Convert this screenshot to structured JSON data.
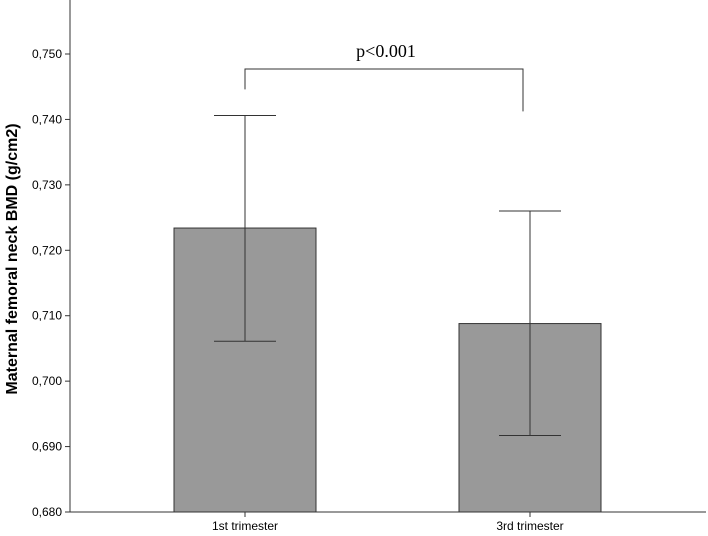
{
  "chart_data": {
    "type": "bar",
    "title": "",
    "xlabel": "",
    "ylabel": "Maternal femoral neck BMD (g/cm2)",
    "categories": [
      "1st trimester",
      "3rd trimester"
    ],
    "values": [
      0.7234,
      0.7088
    ],
    "error_bars": {
      "lower": [
        0.7061,
        0.6917
      ],
      "upper": [
        0.7406,
        0.726
      ]
    },
    "ylim": [
      0.68,
      0.76
    ],
    "yticks": [
      0.68,
      0.69,
      0.7,
      0.71,
      0.72,
      0.73,
      0.74,
      0.75
    ],
    "ytick_labels": [
      "0,680",
      "0,690",
      "0,700",
      "0,710",
      "0,720",
      "0,730",
      "0,740",
      "0,750"
    ],
    "grid": false,
    "bar_color": "#999999",
    "annotation": {
      "text": "p<0.001",
      "bracket_top": 0.7477,
      "bracket_bottom": 0.7446
    }
  }
}
